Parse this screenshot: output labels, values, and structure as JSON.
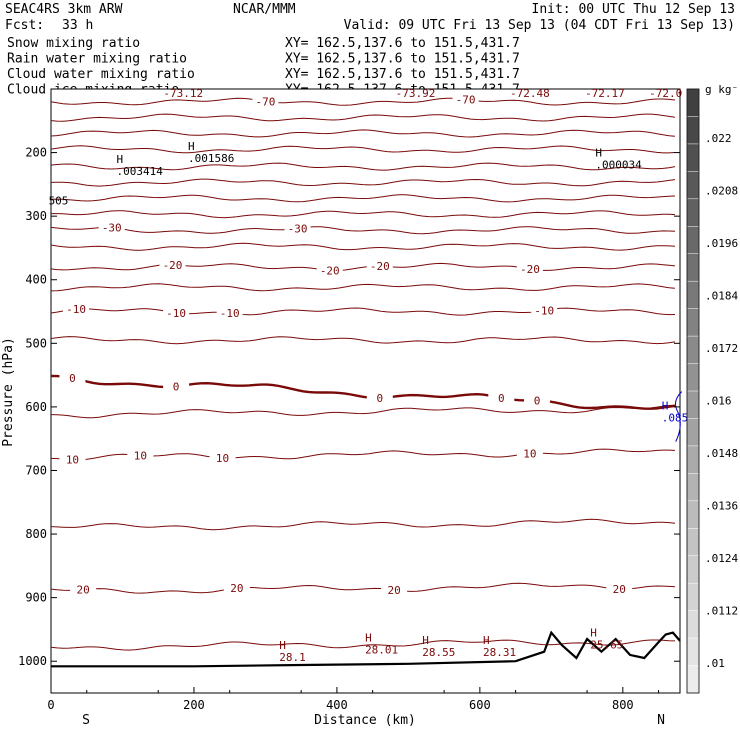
{
  "header": {
    "model": "SEAC4RS  3km ARW",
    "org": "NCAR/MMM",
    "init": "Init: 00 UTC Thu 12 Sep 13",
    "fcst_label": "Fcst:",
    "fcst_value": "33 h",
    "valid": "Valid: 09 UTC Fri 13 Sep 13 (04 CDT Fri 13 Sep 13)"
  },
  "fields": [
    {
      "name": "Snow mixing ratio",
      "xy": "XY=  162.5,137.6 to 151.5,431.7",
      "color": "#000000"
    },
    {
      "name": "Rain water mixing ratio",
      "xy": "XY=  162.5,137.6 to 151.5,431.7",
      "color": "#e00000"
    },
    {
      "name": "Cloud water mixing ratio",
      "xy": "XY=  162.5,137.6 to 151.5,431.7",
      "color": "#0000cc"
    },
    {
      "name": "Cloud ice mixing ratio",
      "xy": "XY=  162.5,137.6 to 151.5,431.7",
      "color": "#000000"
    }
  ],
  "chart_data": {
    "type": "contour",
    "xlabel": "Distance (km)",
    "ylabel": "Pressure (hPa)",
    "xlim": [
      0,
      880
    ],
    "ylim": [
      1050,
      100
    ],
    "x_ticks": [
      "0",
      "200",
      "400",
      "600",
      "800"
    ],
    "y_ticks": [
      "200",
      "300",
      "400",
      "500",
      "600",
      "700",
      "800",
      "900",
      "1000"
    ],
    "x_end_labels": {
      "left": "S",
      "right": "N"
    },
    "temperature_contours": {
      "color": "#7a0a0a",
      "interval": 5,
      "levels": [
        {
          "value": -70,
          "p": 120,
          "labels": [
            {
              "x": 300,
              "text": "-70"
            },
            {
              "x": 580,
              "text": "-70"
            }
          ]
        },
        {
          "value": -65,
          "p": 145
        },
        {
          "value": -60,
          "p": 170
        },
        {
          "value": -55,
          "p": 195
        },
        {
          "value": -50,
          "p": 222
        },
        {
          "value": -45,
          "p": 247
        },
        {
          "value": -40,
          "p": 272
        },
        {
          "value": -35,
          "p": 297
        },
        {
          "value": -30,
          "p": 322,
          "labels": [
            {
              "x": 85,
              "text": "-30"
            },
            {
              "x": 345,
              "text": "-30"
            }
          ]
        },
        {
          "value": -25,
          "p": 348
        },
        {
          "value": -20,
          "p": 380,
          "labels": [
            {
              "x": 170,
              "text": "-20"
            },
            {
              "x": 390,
              "text": "-20"
            },
            {
              "x": 460,
              "text": "-20"
            },
            {
              "x": 670,
              "text": "-20"
            }
          ]
        },
        {
          "value": -15,
          "p": 412
        },
        {
          "value": -10,
          "p": 450,
          "labels": [
            {
              "x": 35,
              "text": "-10"
            },
            {
              "x": 175,
              "text": "-10"
            },
            {
              "x": 250,
              "text": "-10"
            },
            {
              "x": 690,
              "text": "-10"
            }
          ]
        },
        {
          "value": -5,
          "p": 495
        },
        {
          "value": 0,
          "p": 555,
          "labels": [
            {
              "x": 30,
              "text": "0"
            },
            {
              "x": 175,
              "text": "0"
            },
            {
              "x": 460,
              "text": "0"
            },
            {
              "x": 630,
              "text": "0"
            },
            {
              "x": 680,
              "text": "0"
            }
          ]
        },
        {
          "value": 5,
          "p": 612
        },
        {
          "value": 10,
          "p": 680,
          "labels": [
            {
              "x": 30,
              "text": "10"
            },
            {
              "x": 125,
              "text": "10"
            },
            {
              "x": 240,
              "text": "10"
            },
            {
              "x": 670,
              "text": "10"
            }
          ]
        },
        {
          "value": 15,
          "p": 790
        },
        {
          "value": 20,
          "p": 890,
          "labels": [
            {
              "x": 45,
              "text": "20"
            },
            {
              "x": 260,
              "text": "20"
            },
            {
              "x": 480,
              "text": "20"
            },
            {
              "x": 795,
              "text": "20"
            }
          ]
        },
        {
          "value": 25,
          "p": 978
        }
      ]
    },
    "top_labels": [
      {
        "x": 185,
        "text": "-73.12"
      },
      {
        "x": 510,
        "text": "-73.92"
      },
      {
        "x": 670,
        "text": "-72.48"
      },
      {
        "x": 775,
        "text": "-72.17"
      },
      {
        "x": 860,
        "text": "-72.0"
      }
    ],
    "ice_maxima": [
      {
        "x": 100,
        "p": 235,
        "text": ".003414"
      },
      {
        "x": 200,
        "p": 215,
        "text": ".001586"
      },
      {
        "x": 770,
        "p": 225,
        "text": ".000034"
      },
      {
        "x": 5,
        "p": 282,
        "text": "505"
      }
    ],
    "temperature_maxima": [
      {
        "x": 325,
        "p": 1000,
        "text": "28.1"
      },
      {
        "x": 445,
        "p": 988,
        "text": "28.01"
      },
      {
        "x": 525,
        "p": 992,
        "text": "28.55"
      },
      {
        "x": 610,
        "p": 992,
        "text": "28.31"
      },
      {
        "x": 760,
        "p": 980,
        "text": "25.65"
      }
    ],
    "cloud_water_max": {
      "x": 860,
      "p": 620,
      "text": ".085"
    },
    "terrain_p": [
      [
        0,
        1008
      ],
      [
        200,
        1008
      ],
      [
        350,
        1006
      ],
      [
        500,
        1004
      ],
      [
        650,
        1000
      ],
      [
        690,
        985
      ],
      [
        700,
        955
      ],
      [
        715,
        975
      ],
      [
        735,
        995
      ],
      [
        750,
        965
      ],
      [
        770,
        985
      ],
      [
        790,
        965
      ],
      [
        810,
        990
      ],
      [
        830,
        995
      ],
      [
        850,
        970
      ],
      [
        860,
        958
      ],
      [
        870,
        955
      ],
      [
        880,
        968
      ]
    ],
    "colorbar": {
      "unit": "g kg⁻¹",
      "ticks": [
        ".022",
        ".0208",
        ".0196",
        ".0184",
        ".0172",
        ".016",
        ".0148",
        ".0136",
        ".0124",
        ".0112",
        ".01"
      ],
      "top_color": "#404040",
      "bottom_color": "#f0f0f0"
    }
  }
}
